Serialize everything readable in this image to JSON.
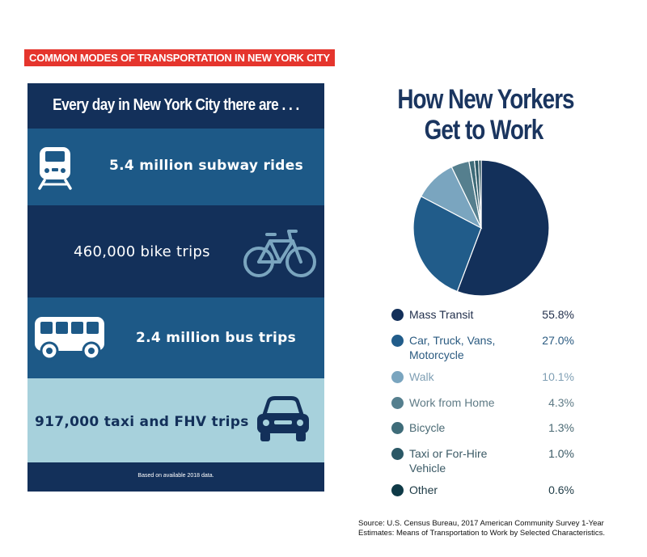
{
  "banner": "COMMON MODES OF TRANSPORTATION IN NEW YORK CITY",
  "infographic": {
    "heading": "Every day in New York City there are . . .",
    "stats": [
      {
        "text": "5.4 million subway rides",
        "icon": "train-icon"
      },
      {
        "text": "460,000 bike trips",
        "icon": "bicycle-icon"
      },
      {
        "text": "2.4 million bus trips",
        "icon": "bus-icon"
      },
      {
        "text": "917,000 taxi and FHV trips",
        "icon": "car-icon"
      }
    ],
    "footnote": "Based on available 2018 data."
  },
  "chart_data": {
    "type": "pie",
    "title": "How New Yorkers Get to Work",
    "title_lines": [
      "How New Yorkers",
      "Get to Work"
    ],
    "slices": [
      {
        "label": "Mass Transit",
        "value": 55.8,
        "display": "55.8%",
        "color": "#13305a",
        "text_color": "#1f2d4a"
      },
      {
        "label": "Car, Truck, Vans, Motorcycle",
        "value": 27.0,
        "display": "27.0%",
        "color": "#215c8a",
        "text_color": "#2a5a80"
      },
      {
        "label": "Walk",
        "value": 10.1,
        "display": "10.1%",
        "color": "#7aa5bf",
        "text_color": "#7f9fb4"
      },
      {
        "label": "Work from Home",
        "value": 4.3,
        "display": "4.3%",
        "color": "#557f8e",
        "text_color": "#5f7b86"
      },
      {
        "label": "Bicycle",
        "value": 1.3,
        "display": "1.3%",
        "color": "#3f6c79",
        "text_color": "#4a6a74"
      },
      {
        "label": "Taxi or For-Hire Vehicle",
        "value": 1.0,
        "display": "1.0%",
        "color": "#2b5866",
        "text_color": "#3b5a66"
      },
      {
        "label": "Other",
        "value": 0.6,
        "display": "0.6%",
        "color": "#0f3a47",
        "text_color": "#1d3a45"
      }
    ]
  },
  "source": "Source: U.S. Census Bureau, 2017 American Community Survey 1-Year Estimates: Means of Transportation to Work by Selected Characteristics."
}
